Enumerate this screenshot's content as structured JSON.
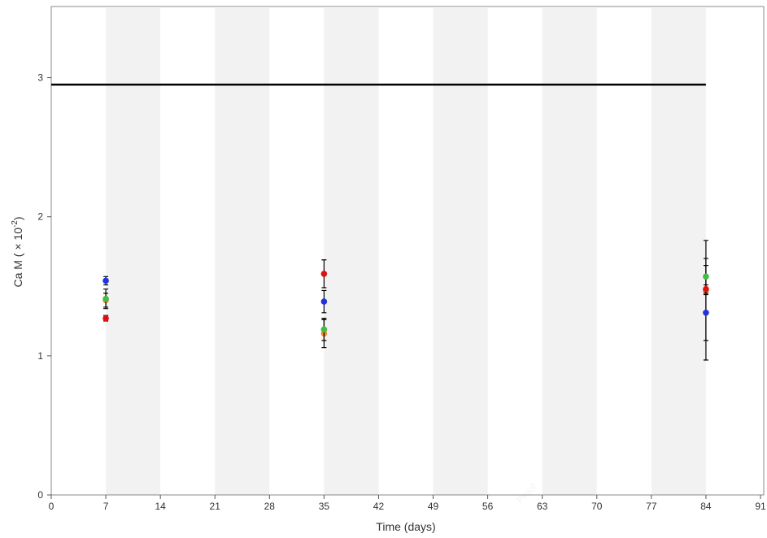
{
  "chart_data": {
    "type": "scatter",
    "x_label": "Time (days)",
    "y_label": "Ca M ( × 10",
    "y_label_exponent": "-2",
    "y_label_end": ")",
    "xlim": [
      0,
      91
    ],
    "ylim": [
      0,
      3.5
    ],
    "xticks": [
      0,
      7,
      14,
      21,
      28,
      35,
      42,
      49,
      56,
      63,
      70,
      77,
      84,
      91
    ],
    "yticks": [
      0,
      1,
      2,
      3
    ],
    "shaded_bands": [
      [
        7,
        14
      ],
      [
        21,
        28
      ],
      [
        35,
        42
      ],
      [
        49,
        56
      ],
      [
        63,
        70
      ],
      [
        77,
        84
      ]
    ],
    "band_color": "#f2f2f2",
    "reference_line": {
      "x": [
        0,
        84
      ],
      "values": [
        2.95,
        2.95
      ],
      "color": "#000000"
    },
    "series": [
      {
        "color": "#ee8a3a",
        "x": [
          7,
          35,
          84
        ],
        "values": [
          1.4,
          1.16,
          1.47
        ],
        "errors": [
          0.05,
          0.1,
          0.36
        ]
      },
      {
        "color": "#2233dd",
        "x": [
          7,
          35,
          84
        ],
        "values": [
          1.54,
          1.39,
          1.31
        ],
        "errors": [
          0.03,
          0.08,
          0.34
        ]
      },
      {
        "color": "#44bb44",
        "x": [
          7,
          35,
          84
        ],
        "values": [
          1.41,
          1.19,
          1.57
        ],
        "errors": [
          0.07,
          0.08,
          0.13
        ]
      },
      {
        "color": "#dd1111",
        "x": [
          7,
          35,
          84
        ],
        "values": [
          1.27,
          1.59,
          1.48
        ],
        "errors": [
          0.02,
          0.1,
          0.03
        ]
      }
    ],
    "watermark": "Proof"
  }
}
